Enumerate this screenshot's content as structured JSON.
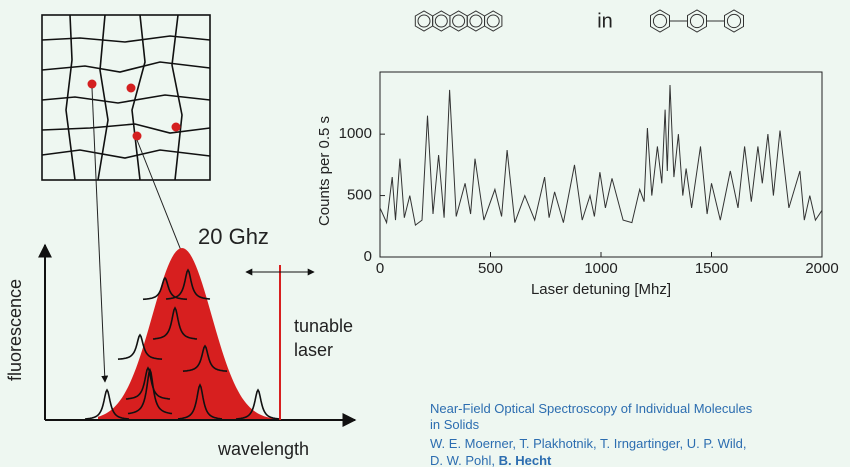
{
  "chart_data": {
    "type": "line",
    "x_label": "Laser detuning [Mhz]",
    "y_label": "Counts per 0.5 s",
    "xlim": [
      0,
      2000
    ],
    "ylim": [
      0,
      1400
    ],
    "xticks": [
      0,
      500,
      1000,
      1500,
      2000
    ],
    "yticks": [
      0,
      500,
      1000
    ],
    "series": [
      {
        "color": "#333333",
        "x": [
          0,
          30,
          55,
          70,
          90,
          110,
          135,
          160,
          190,
          215,
          240,
          265,
          290,
          315,
          345,
          385,
          410,
          430,
          470,
          520,
          550,
          575,
          610,
          655,
          700,
          745,
          765,
          790,
          830,
          880,
          915,
          950,
          970,
          995,
          1020,
          1050,
          1100,
          1140,
          1175,
          1195,
          1210,
          1230,
          1255,
          1275,
          1290,
          1300,
          1312,
          1330,
          1350,
          1370,
          1385,
          1410,
          1450,
          1480,
          1500,
          1540,
          1585,
          1620,
          1650,
          1680,
          1710,
          1730,
          1755,
          1780,
          1810,
          1850,
          1900,
          1920,
          1945,
          1970,
          2000
        ],
        "values": [
          400,
          280,
          650,
          300,
          800,
          320,
          500,
          260,
          300,
          1150,
          350,
          830,
          320,
          1360,
          330,
          600,
          350,
          800,
          300,
          550,
          330,
          870,
          280,
          500,
          300,
          650,
          320,
          530,
          280,
          750,
          300,
          500,
          330,
          690,
          400,
          640,
          300,
          280,
          550,
          450,
          1050,
          500,
          900,
          600,
          1200,
          700,
          1400,
          650,
          1000,
          500,
          720,
          400,
          900,
          350,
          600,
          300,
          700,
          400,
          900,
          450,
          900,
          600,
          1000,
          500,
          1030,
          400,
          700,
          300,
          500,
          300,
          380
        ]
      }
    ]
  },
  "molecules": {
    "connector": "in"
  },
  "diagram": {
    "linewidth": "20 Ghz",
    "y_axis": "fluorescence",
    "x_axis": "wavelength",
    "laser": [
      "tunable",
      "laser"
    ]
  },
  "citation": {
    "title": [
      "Near-Field Optical Spectroscopy of Individual Molecules",
      "in Solids"
    ],
    "authors": [
      "W. E. Moerner, T. Plakhotnik, T. Irngartinger, U. P. Wild,",
      "D. W. Pohl, "
    ],
    "highlight": "B. Hecht"
  }
}
